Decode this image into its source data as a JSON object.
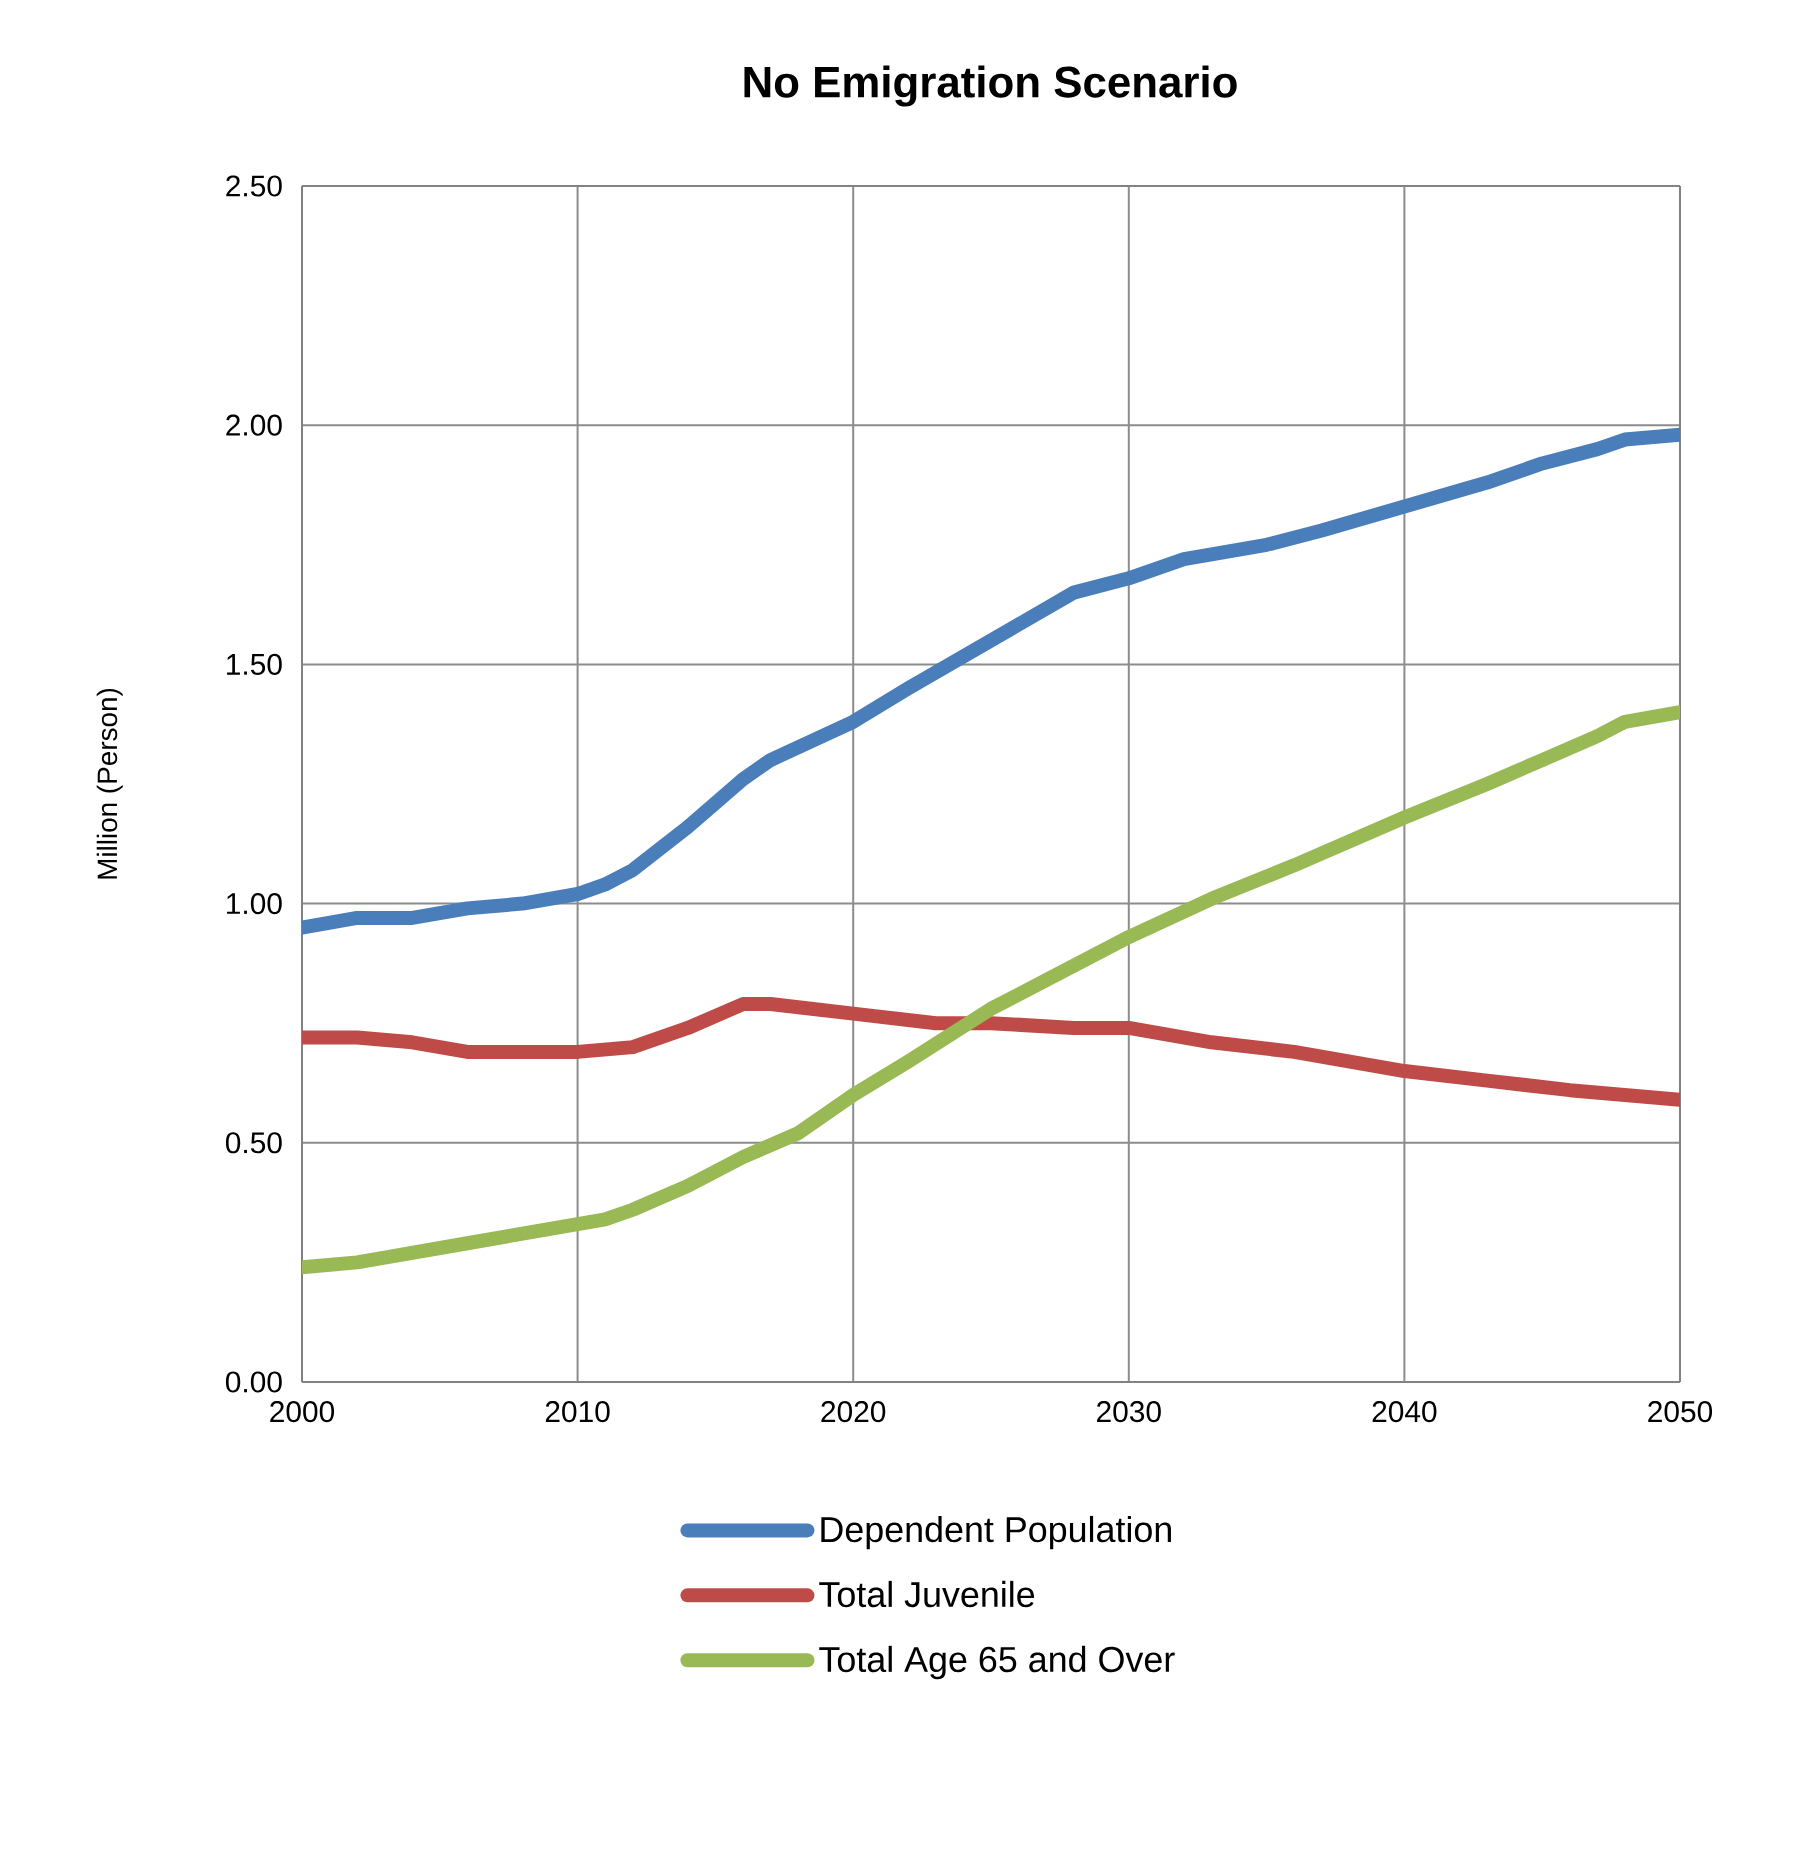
{
  "chart_data": {
    "type": "line",
    "title": "No Emigration Scenario",
    "ylabel": "Million (Person)",
    "xlim": [
      2000,
      2050
    ],
    "ylim": [
      0,
      2.5
    ],
    "xticks": [
      2000,
      2010,
      2020,
      2030,
      2040,
      2050
    ],
    "yticks": [
      {
        "value": 0,
        "label": "0.00"
      },
      {
        "value": 0.5,
        "label": "0.50"
      },
      {
        "value": 1,
        "label": "1.00"
      },
      {
        "value": 1.5,
        "label": "1.50"
      },
      {
        "value": 2,
        "label": "2.00"
      },
      {
        "value": 2.5,
        "label": "2.50"
      }
    ],
    "grid": true,
    "legend": "bottom",
    "marker": "none",
    "line_style": "solid",
    "series": [
      {
        "name": "Dependent Population",
        "color": "#4a7ebb",
        "x": [
          2000,
          2002,
          2004,
          2006,
          2008,
          2010,
          2011,
          2012,
          2014,
          2016,
          2017,
          2020,
          2022,
          2025,
          2028,
          2030,
          2032,
          2035,
          2037,
          2040,
          2043,
          2045,
          2047,
          2048,
          2050
        ],
        "values": [
          0.95,
          0.97,
          0.97,
          0.99,
          1.0,
          1.02,
          1.04,
          1.07,
          1.16,
          1.26,
          1.3,
          1.38,
          1.45,
          1.55,
          1.65,
          1.68,
          1.72,
          1.75,
          1.78,
          1.83,
          1.88,
          1.92,
          1.95,
          1.97,
          1.98
        ]
      },
      {
        "name": "Total Juvenile",
        "color": "#be4b48",
        "x": [
          2000,
          2002,
          2004,
          2006,
          2008,
          2010,
          2012,
          2014,
          2016,
          2017,
          2020,
          2023,
          2025,
          2028,
          2030,
          2033,
          2036,
          2040,
          2043,
          2046,
          2050
        ],
        "values": [
          0.72,
          0.72,
          0.71,
          0.69,
          0.69,
          0.69,
          0.7,
          0.74,
          0.79,
          0.79,
          0.77,
          0.75,
          0.75,
          0.74,
          0.74,
          0.71,
          0.69,
          0.65,
          0.63,
          0.61,
          0.59
        ]
      },
      {
        "name": "Total Age 65 and Over",
        "color": "#98b954",
        "x": [
          2000,
          2002,
          2003,
          2006,
          2008,
          2010,
          2011,
          2012,
          2014,
          2016,
          2018,
          2020,
          2022,
          2025,
          2028,
          2030,
          2033,
          2036,
          2040,
          2043,
          2045,
          2047,
          2048,
          2050
        ],
        "values": [
          0.24,
          0.25,
          0.26,
          0.29,
          0.31,
          0.33,
          0.34,
          0.36,
          0.41,
          0.47,
          0.52,
          0.6,
          0.67,
          0.78,
          0.87,
          0.93,
          1.01,
          1.08,
          1.18,
          1.25,
          1.3,
          1.35,
          1.38,
          1.4
        ]
      }
    ]
  }
}
